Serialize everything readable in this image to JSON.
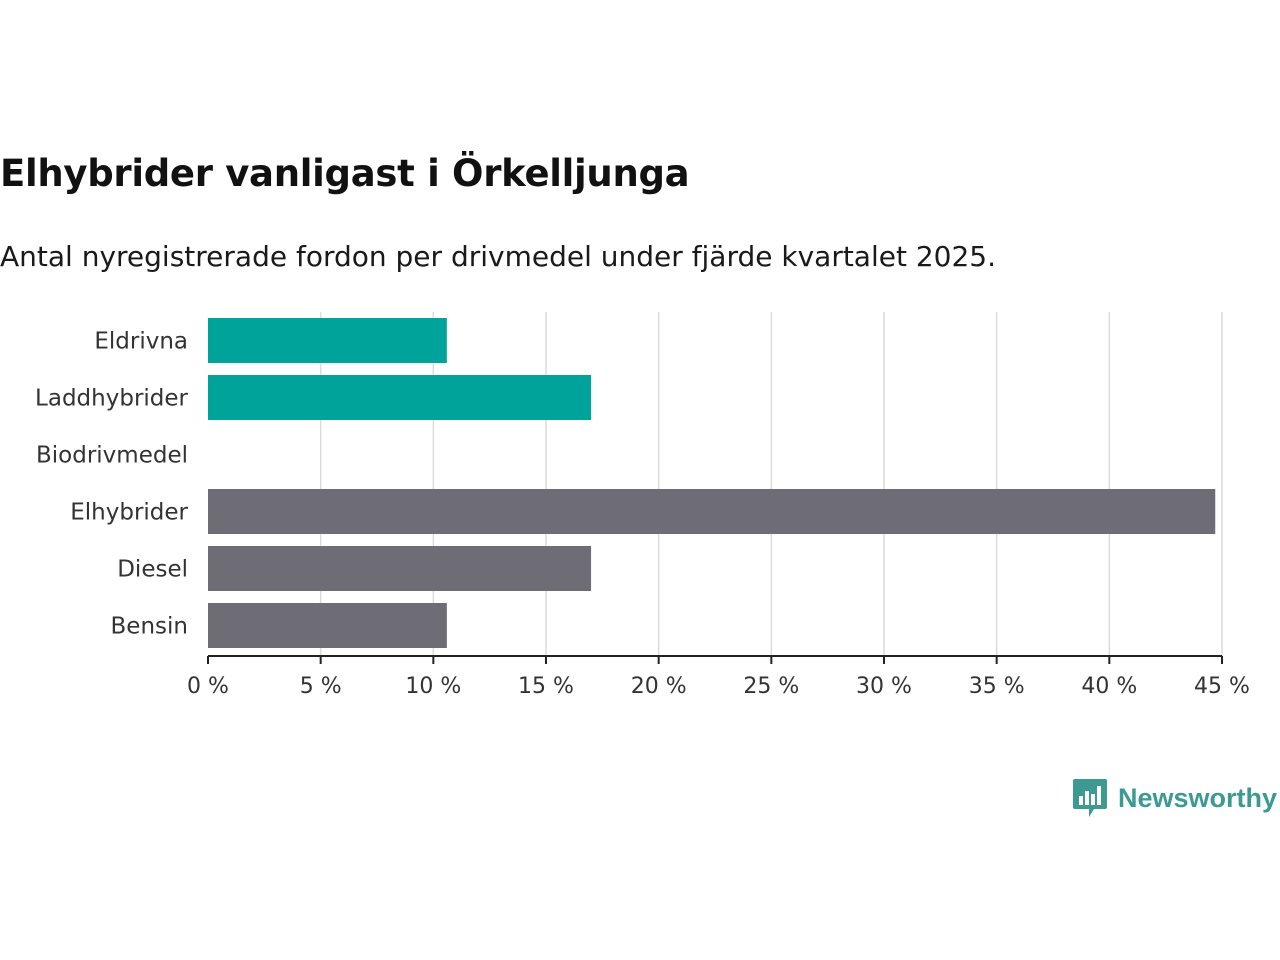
{
  "title": "Elhybrider vanligast i Örkelljunga",
  "subtitle": "Antal nyregistrerade fordon per drivmedel under fjärde kvartalet 2025.",
  "chart_data": {
    "type": "bar",
    "orientation": "horizontal",
    "categories": [
      "Eldrivna",
      "Laddhybrider",
      "Biodrivmedel",
      "Elhybrider",
      "Diesel",
      "Bensin"
    ],
    "values": [
      10.6,
      17.0,
      0,
      44.7,
      17.0,
      10.6
    ],
    "colors": [
      "#00a39a",
      "#00a39a",
      "#00a39a",
      "#6e6d75",
      "#6e6d75",
      "#6e6d75"
    ],
    "x_ticks": [
      0,
      5,
      10,
      15,
      20,
      25,
      30,
      35,
      40,
      45
    ],
    "tick_suffix": " %",
    "xlim": [
      0,
      45
    ],
    "grid": true,
    "xlabel": "",
    "ylabel": ""
  },
  "brand": {
    "name": "Newsworthy",
    "icon": "newsworthy-logo-icon",
    "color": "#3d9a93"
  }
}
